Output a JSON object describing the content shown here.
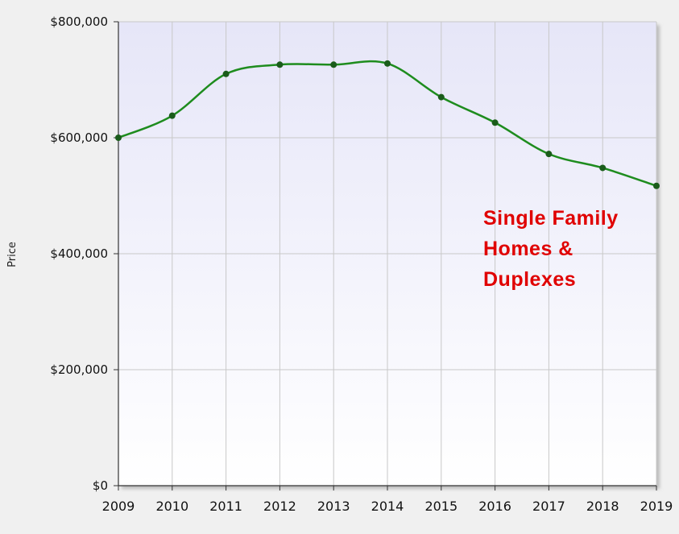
{
  "chart_data": {
    "type": "line",
    "x": [
      "2009",
      "2010",
      "2011",
      "2012",
      "2013",
      "2014",
      "2015",
      "2016",
      "2017",
      "2018",
      "2019"
    ],
    "series": [
      {
        "values": [
          600000,
          638000,
          710000,
          726000,
          726000,
          728000,
          670000,
          626000,
          572000,
          548000,
          517000
        ]
      }
    ],
    "ylabel": "Price",
    "ylim": [
      0,
      800000
    ],
    "yticks": [
      "$0",
      "$200,000",
      "$400,000",
      "$600,000",
      "$800,000"
    ],
    "grid": true,
    "annotation": [
      "Single Family",
      "Homes &",
      "Duplexes"
    ],
    "colors": {
      "line": "#1e8c1e",
      "marker": "#1a5c1a",
      "annotation": "#e00000",
      "plot_bg_top": "#e6e6f8",
      "plot_bg_bottom": "#ffffff"
    }
  }
}
